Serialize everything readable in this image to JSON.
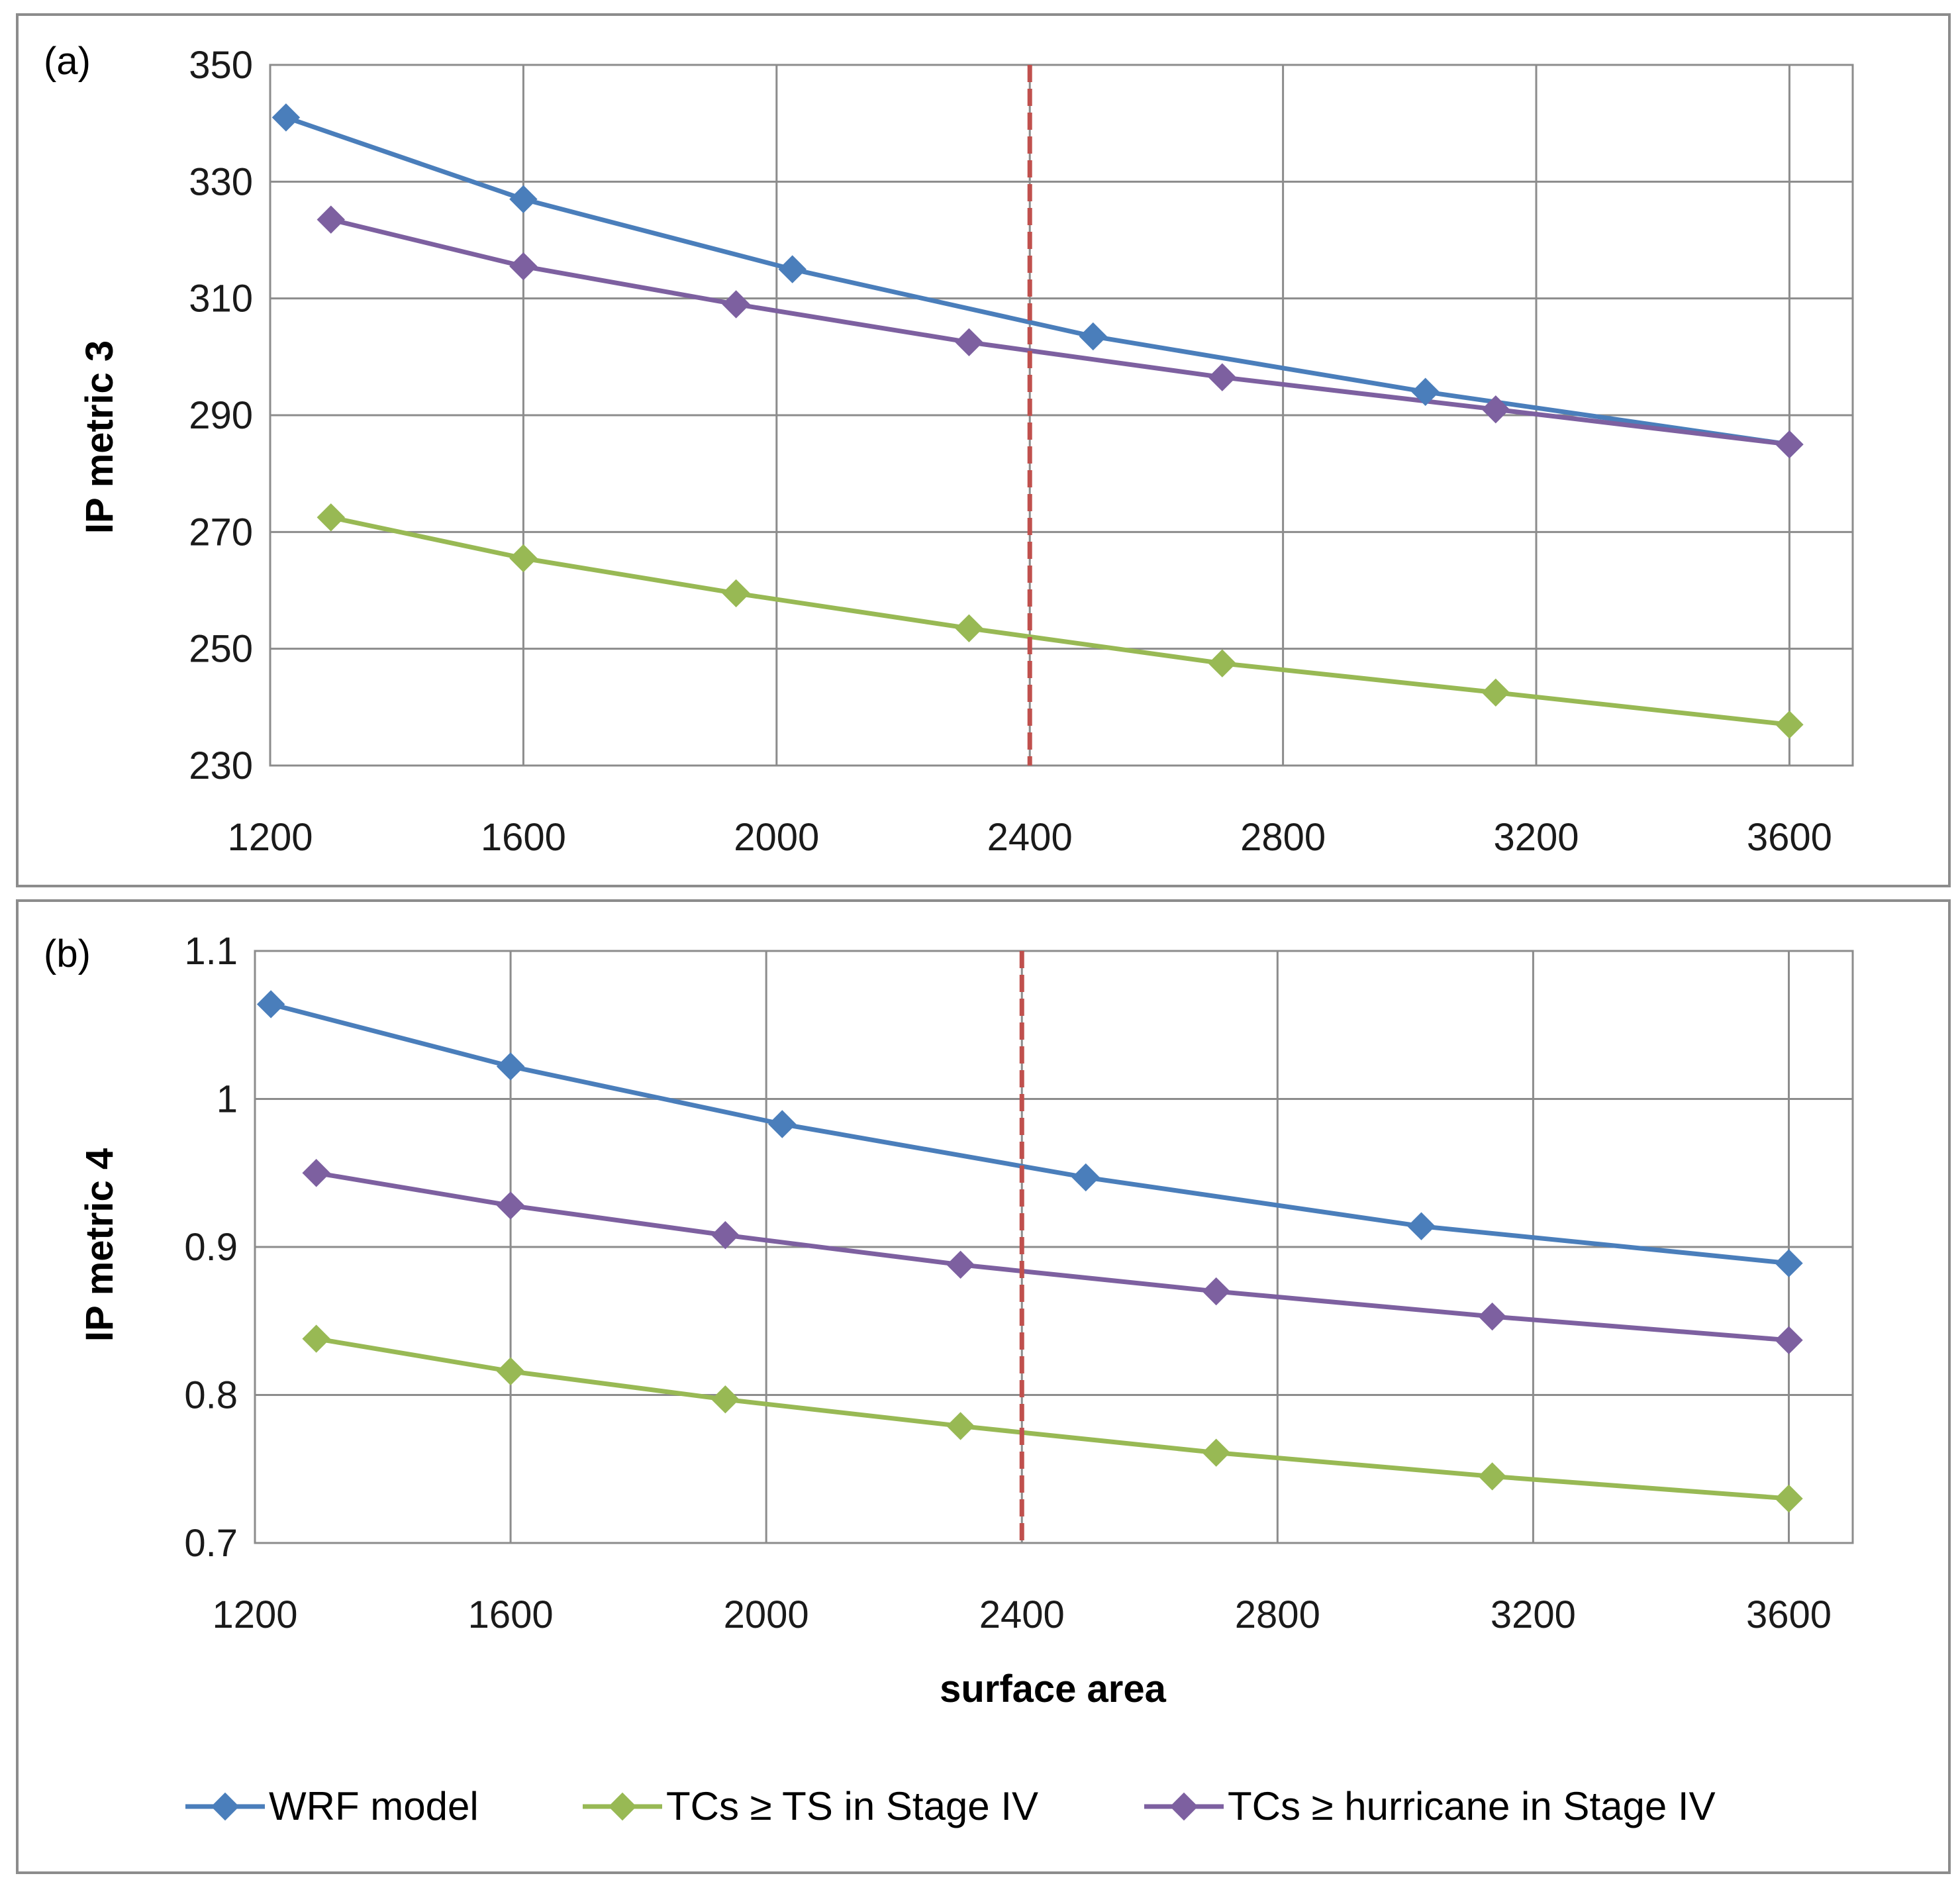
{
  "legend": {
    "placement": "bottom",
    "entries": [
      {
        "name": "WRF model",
        "color": "#4a7ebb"
      },
      {
        "name": "TCs ≥ TS in Stage IV",
        "color": "#98b954"
      },
      {
        "name": "TCs ≥ hurricane in Stage IV",
        "color": "#7d60a0"
      }
    ]
  },
  "chart_data": [
    {
      "type": "line",
      "panel_label": "(a)",
      "title": "",
      "xlabel": "",
      "ylabel": "IP metric 3",
      "xlim": [
        1200,
        3700
      ],
      "ylim": [
        230,
        350
      ],
      "xticks": [
        "1200",
        "1600",
        "2000",
        "2400",
        "2800",
        "3200",
        "3600"
      ],
      "yticks": [
        "230",
        "250",
        "270",
        "290",
        "310",
        "330",
        "350"
      ],
      "grid": true,
      "vline": {
        "x": 2400,
        "color": "#c0504d",
        "style": "dashed"
      },
      "series": [
        {
          "name": "WRF model",
          "color": "#4a7ebb",
          "x": [
            1225,
            1600,
            2025,
            2500,
            3025,
            3600
          ],
          "y": [
            341,
            327,
            315,
            303.5,
            294,
            285
          ]
        },
        {
          "name": "TCs ≥ TS in Stage IV",
          "color": "#98b954",
          "x": [
            1296,
            1600,
            1936,
            2304,
            2704,
            3136,
            3600
          ],
          "y": [
            272.5,
            265.5,
            259.5,
            253.5,
            247.5,
            242.5,
            237
          ]
        },
        {
          "name": "TCs ≥ hurricane in Stage IV",
          "color": "#7d60a0",
          "x": [
            1296,
            1600,
            1936,
            2304,
            2704,
            3136,
            3600
          ],
          "y": [
            323.5,
            315.5,
            309,
            302.5,
            296.5,
            291,
            285
          ]
        }
      ]
    },
    {
      "type": "line",
      "panel_label": "(b)",
      "title": "",
      "xlabel": "surface area",
      "ylabel": "IP metric 4",
      "xlim": [
        1200,
        3700
      ],
      "ylim": [
        0.7,
        1.1
      ],
      "xticks": [
        "1200",
        "1600",
        "2000",
        "2400",
        "2800",
        "3200",
        "3600"
      ],
      "yticks": [
        "0.7",
        "0.8",
        "0.9",
        "1",
        "1.1"
      ],
      "grid": true,
      "vline": {
        "x": 2400,
        "color": "#c0504d",
        "style": "dashed"
      },
      "series": [
        {
          "name": "WRF model",
          "color": "#4a7ebb",
          "x": [
            1225,
            1600,
            2025,
            2500,
            3025,
            3600
          ],
          "y": [
            1.064,
            1.022,
            0.983,
            0.947,
            0.914,
            0.889
          ]
        },
        {
          "name": "TCs ≥ TS in Stage IV",
          "color": "#98b954",
          "x": [
            1296,
            1600,
            1936,
            2304,
            2704,
            3136,
            3600
          ],
          "y": [
            0.838,
            0.816,
            0.797,
            0.779,
            0.761,
            0.745,
            0.73
          ]
        },
        {
          "name": "TCs ≥ hurricane in Stage IV",
          "color": "#7d60a0",
          "x": [
            1296,
            1600,
            1936,
            2304,
            2704,
            3136,
            3600
          ],
          "y": [
            0.95,
            0.928,
            0.908,
            0.888,
            0.87,
            0.853,
            0.837
          ]
        }
      ]
    }
  ]
}
